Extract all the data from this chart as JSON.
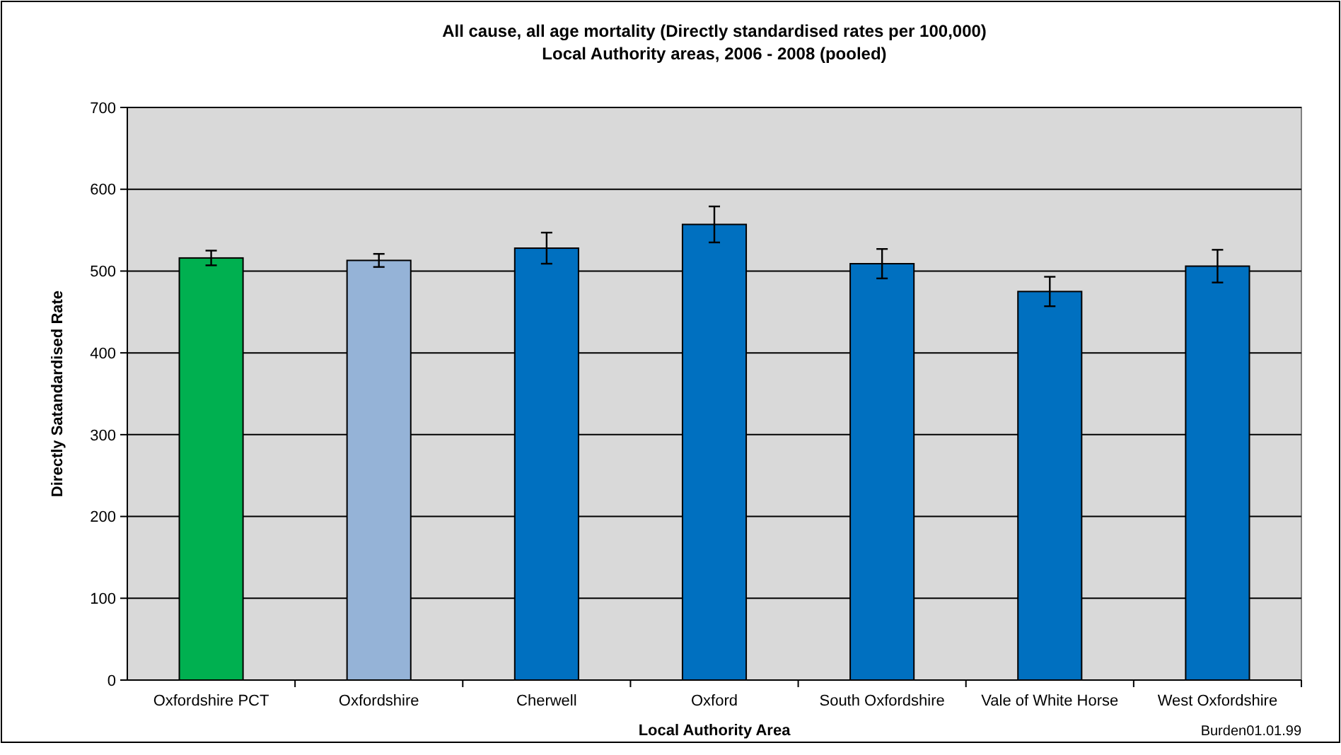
{
  "chart_data": {
    "type": "bar",
    "title": "All cause, all age mortality (Directly standardised rates per 100,000)",
    "subtitle": "Local Authority areas, 2006 - 2008 (pooled)",
    "xlabel": "Local Authority Area",
    "ylabel": "Directly Satandardised Rate",
    "categories": [
      "Oxfordshire PCT",
      "Oxfordshire",
      "Cherwell",
      "Oxford",
      "South Oxfordshire",
      "Vale of White Horse",
      "West Oxfordshire"
    ],
    "values": [
      516,
      513,
      528,
      557,
      509,
      475,
      506
    ],
    "errors": [
      9,
      8,
      19,
      22,
      18,
      18,
      20
    ],
    "colors": [
      "#00b050",
      "#95b3d7",
      "#0070c0",
      "#0070c0",
      "#0070c0",
      "#0070c0",
      "#0070c0"
    ],
    "ylim": [
      0,
      700
    ],
    "yticks": [
      0,
      100,
      200,
      300,
      400,
      500,
      600,
      700
    ],
    "grid": "y",
    "annotations": [
      "Burden01.01.99"
    ]
  }
}
